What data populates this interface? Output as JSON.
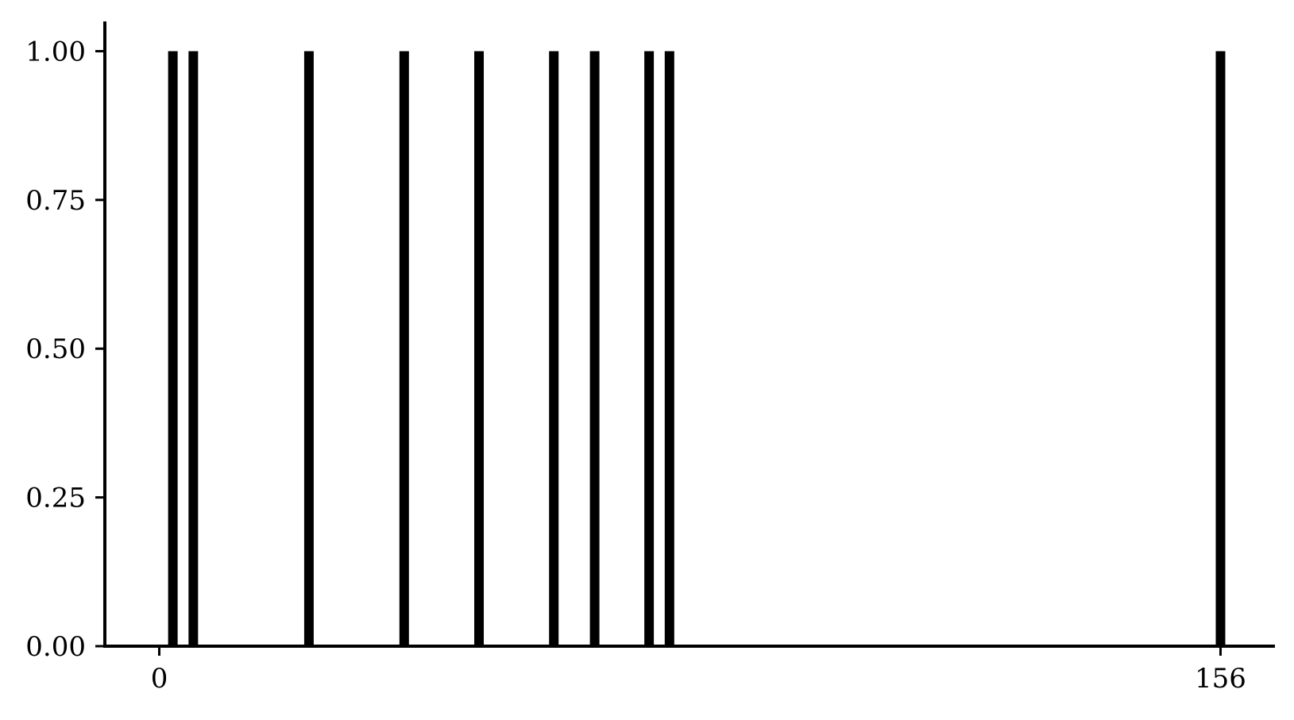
{
  "chart_data": {
    "type": "bar",
    "title": "",
    "xlabel": "",
    "ylabel": "",
    "x": [
      2,
      5,
      22,
      36,
      47,
      58,
      64,
      72,
      75,
      156
    ],
    "values": [
      1,
      1,
      1,
      1,
      1,
      1,
      1,
      1,
      1,
      1
    ],
    "xlim": [
      -8,
      164
    ],
    "ylim": [
      0,
      1.05
    ],
    "xticks": [
      0,
      156
    ],
    "xtick_labels": [
      "0",
      "156"
    ],
    "yticks": [
      0,
      0.25,
      0.5,
      0.75,
      1.0
    ],
    "ytick_labels": [
      "0.00",
      "0.25",
      "0.50",
      "0.75",
      "1.00"
    ],
    "grid": false,
    "legend": "none",
    "bar_color": "#000000"
  }
}
